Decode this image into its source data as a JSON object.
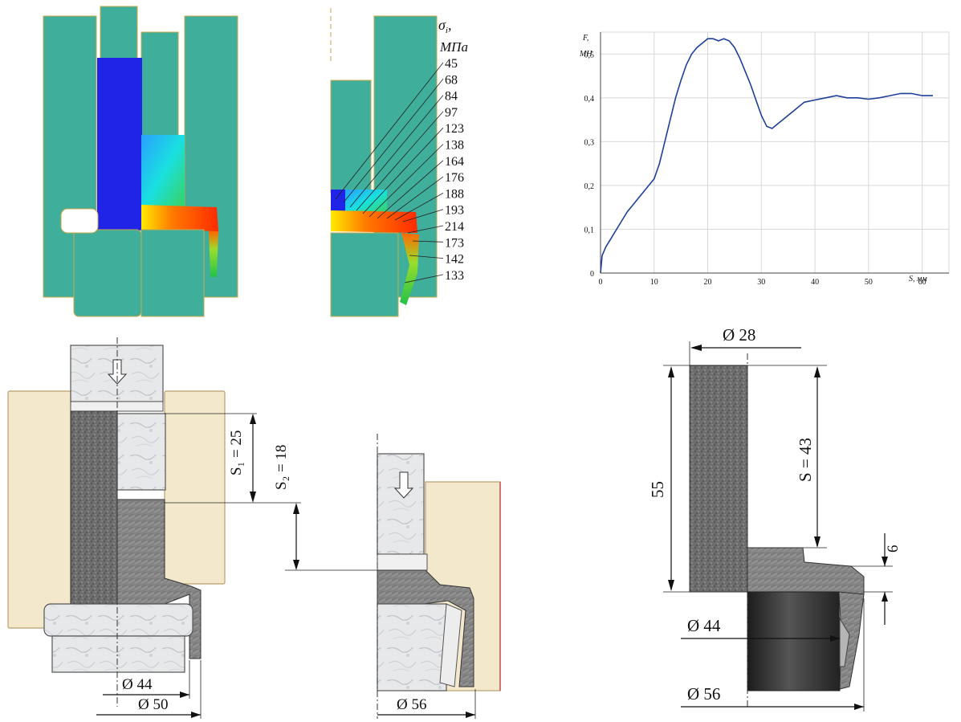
{
  "simulation": {
    "stress_symbol": "σ",
    "stress_subscript": "i",
    "stress_unit": "МПа",
    "contour_values": [
      "45",
      "68",
      "84",
      "97",
      "123",
      "138",
      "164",
      "176",
      "188",
      "193",
      "214",
      "173",
      "142",
      "133"
    ],
    "colors": {
      "tool": "#3fae9a",
      "billet_low": "#1a1ad6",
      "hot": "#ff3300"
    }
  },
  "chart_data": {
    "type": "line",
    "title": "",
    "ylabel_symbol": "F",
    "ylabel_unit": "МН",
    "xlabel_symbol": "S",
    "xlabel_unit": "мм",
    "xlim": [
      0,
      65
    ],
    "ylim": [
      0,
      0.55
    ],
    "x_ticks": [
      "0",
      "10",
      "20",
      "30",
      "40",
      "50",
      "60"
    ],
    "y_ticks": [
      "0",
      "0,1",
      "0,2",
      "0,3",
      "0,4",
      "0,5"
    ],
    "series": [
      {
        "color": "#1f3f9a",
        "points": [
          [
            0,
            0
          ],
          [
            0.3,
            0.04
          ],
          [
            1,
            0.06
          ],
          [
            2,
            0.08
          ],
          [
            3,
            0.1
          ],
          [
            4,
            0.12
          ],
          [
            5,
            0.14
          ],
          [
            6,
            0.155
          ],
          [
            7,
            0.17
          ],
          [
            8,
            0.185
          ],
          [
            9,
            0.2
          ],
          [
            10,
            0.215
          ],
          [
            11,
            0.25
          ],
          [
            12,
            0.3
          ],
          [
            13,
            0.35
          ],
          [
            14,
            0.4
          ],
          [
            15,
            0.44
          ],
          [
            16,
            0.475
          ],
          [
            17,
            0.5
          ],
          [
            18,
            0.515
          ],
          [
            19,
            0.525
          ],
          [
            20,
            0.535
          ],
          [
            21,
            0.535
          ],
          [
            22,
            0.53
          ],
          [
            23,
            0.535
          ],
          [
            24,
            0.53
          ],
          [
            25,
            0.515
          ],
          [
            26,
            0.49
          ],
          [
            27,
            0.46
          ],
          [
            28,
            0.43
          ],
          [
            29,
            0.395
          ],
          [
            30,
            0.36
          ],
          [
            31,
            0.335
          ],
          [
            32,
            0.33
          ],
          [
            33,
            0.34
          ],
          [
            34,
            0.35
          ],
          [
            35,
            0.36
          ],
          [
            36,
            0.37
          ],
          [
            37,
            0.38
          ],
          [
            38,
            0.39
          ],
          [
            40,
            0.395
          ],
          [
            42,
            0.4
          ],
          [
            44,
            0.405
          ],
          [
            46,
            0.4
          ],
          [
            48,
            0.4
          ],
          [
            50,
            0.397
          ],
          [
            52,
            0.4
          ],
          [
            54,
            0.405
          ],
          [
            56,
            0.41
          ],
          [
            58,
            0.41
          ],
          [
            60,
            0.405
          ],
          [
            62,
            0.405
          ]
        ]
      }
    ]
  },
  "drawing_left": {
    "s1": "S₁ = 25",
    "s2": "S₂ = 18",
    "d44": "Ø 44",
    "d50": "Ø 50",
    "d56": "Ø 56"
  },
  "drawing_right": {
    "d28": "Ø 28",
    "h55": "55",
    "s43": "S = 43",
    "t6": "6",
    "d44": "Ø 44",
    "d56": "Ø 56"
  }
}
